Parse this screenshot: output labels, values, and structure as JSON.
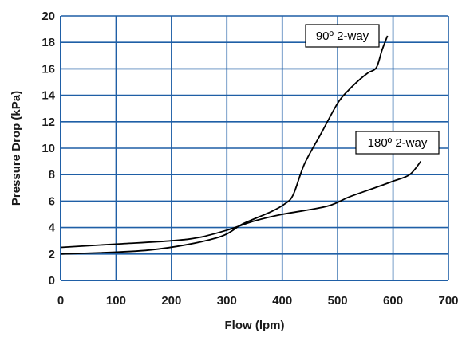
{
  "chart_data": {
    "type": "line",
    "title": "",
    "xlabel": "Flow (lpm)",
    "ylabel": "Pressure Drop (kPa)",
    "xlim": [
      0,
      700
    ],
    "ylim": [
      0,
      20
    ],
    "xticks": [
      0,
      100,
      200,
      300,
      400,
      500,
      600,
      700
    ],
    "yticks": [
      0,
      2,
      4,
      6,
      8,
      10,
      12,
      14,
      16,
      18,
      20
    ],
    "grid": true,
    "grid_color": "#1f5fa6",
    "line_color": "#000000",
    "series": [
      {
        "name": "90º 2-way",
        "x": [
          0,
          160,
          280,
          330,
          380,
          405,
          420,
          440,
          470,
          500,
          520,
          540,
          555,
          570,
          580,
          590
        ],
        "y": [
          2.0,
          2.3,
          3.2,
          4.3,
          5.2,
          5.8,
          6.5,
          8.8,
          11.1,
          13.4,
          14.4,
          15.2,
          15.7,
          16.1,
          17.4,
          18.5
        ]
      },
      {
        "name": "180º 2-way",
        "x": [
          0,
          100,
          200,
          250,
          300,
          350,
          400,
          480,
          520,
          560,
          600,
          630,
          650
        ],
        "y": [
          2.5,
          2.75,
          3.0,
          3.25,
          3.8,
          4.5,
          5.0,
          5.6,
          6.3,
          6.9,
          7.5,
          8.0,
          9.0
        ]
      }
    ],
    "annotations": [
      {
        "text": "90º 2-way",
        "series": 0
      },
      {
        "text": "180º 2-way",
        "series": 1
      }
    ]
  }
}
